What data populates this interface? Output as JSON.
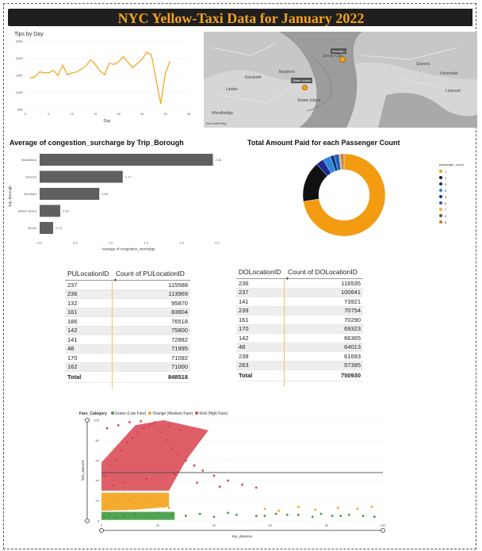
{
  "dashboard_title": "NYC Yellow-Taxi Data for January 2022",
  "colors": {
    "accent": "#f4a21a",
    "bar": "#5f5f5f",
    "green": "#3f9a3f",
    "orange": "#f4a21a",
    "red": "#d9434f"
  },
  "tips_panel": {
    "title": "Tips by Day"
  },
  "map_panel": {
    "labels": [
      "Jersey City",
      "Brooklyn",
      "Staten Island",
      "Bayonne",
      "Elizabeth",
      "Linden",
      "Woodbridge",
      "Queens",
      "Linwood",
      "Uniondale"
    ],
    "tag_brooklyn": "Brooklyn",
    "tag_staten": "Staten Island",
    "attribution": "Microsoft Bing"
  },
  "surcharge_panel": {
    "title": "Average of congestion_surcharge by Trip_Borough"
  },
  "passenger_panel": {
    "title": "Total Amount Paid for each Passenger Count"
  },
  "legend_passenger": {
    "title": "passenger_count",
    "items": [
      {
        "label": "1",
        "color": "#f39c12"
      },
      {
        "label": "2",
        "color": "#111111"
      },
      {
        "label": "3",
        "color": "#1a2b8f"
      },
      {
        "label": "5",
        "color": "#2e86de"
      },
      {
        "label": "4",
        "color": "#0b3a75"
      },
      {
        "label": "6",
        "color": "#1f5fbf"
      },
      {
        "label": "7",
        "color": "#f5b041"
      },
      {
        "label": "0",
        "color": "#7b4f2c"
      },
      {
        "label": "8",
        "color": "#c27c3a"
      }
    ]
  },
  "pu_table": {
    "headers": [
      "PULocationID",
      "Count of PULocationID"
    ],
    "rows": [
      [
        "237",
        "115588"
      ],
      [
        "236",
        "113969"
      ],
      [
        "132",
        "95870"
      ],
      [
        "161",
        "83804"
      ],
      [
        "186",
        "76518"
      ],
      [
        "142",
        "75800"
      ],
      [
        "141",
        "72882"
      ],
      [
        "48",
        "71995"
      ],
      [
        "170",
        "71092"
      ],
      [
        "162",
        "71000"
      ]
    ],
    "total_label": "Total",
    "total_value": "848518"
  },
  "do_table": {
    "headers": [
      "DOLocationID",
      "Count of DOLocationID"
    ],
    "rows": [
      [
        "236",
        "116535"
      ],
      [
        "237",
        "100641"
      ],
      [
        "141",
        "73921"
      ],
      [
        "239",
        "70754"
      ],
      [
        "161",
        "70290"
      ],
      [
        "170",
        "69323"
      ],
      [
        "142",
        "66365"
      ],
      [
        "48",
        "64013"
      ],
      [
        "238",
        "61693"
      ],
      [
        "263",
        "57395"
      ]
    ],
    "total_label": "Total",
    "total_value": "750930"
  },
  "scatter_panel": {
    "legend_title": "Fare_Category",
    "legend_items": [
      {
        "label": "Green (Low Fare)",
        "color": "#3f9a3f"
      },
      {
        "label": "Orange (Medium Fare)",
        "color": "#f4a21a"
      },
      {
        "label": "Red (High Fare)",
        "color": "#d9434f"
      }
    ]
  },
  "chart_data": [
    {
      "type": "line",
      "title": "Tips by Day",
      "xlabel": "Day",
      "ylabel": "",
      "xlim": [
        0,
        35
      ],
      "ylim": [
        50000,
        250000
      ],
      "xticks": [
        0,
        5,
        10,
        15,
        20,
        25,
        30,
        35
      ],
      "yticks": [
        {
          "v": 50000,
          "label": "50K"
        },
        {
          "v": 100000,
          "label": "100K"
        },
        {
          "v": 150000,
          "label": "150K"
        },
        {
          "v": 200000,
          "label": "200K"
        },
        {
          "v": 250000,
          "label": "250K"
        }
      ],
      "x": [
        1,
        2,
        3,
        4,
        5,
        6,
        7,
        8,
        9,
        10,
        11,
        12,
        13,
        14,
        15,
        16,
        17,
        18,
        19,
        20,
        21,
        22,
        23,
        24,
        25,
        26,
        27,
        28,
        29,
        30,
        31
      ],
      "values": [
        142000,
        145000,
        160000,
        158000,
        157000,
        165000,
        150000,
        180000,
        152000,
        157000,
        160000,
        168000,
        178000,
        195000,
        182000,
        162000,
        152000,
        185000,
        182000,
        190000,
        205000,
        188000,
        172000,
        185000,
        197000,
        218000,
        210000,
        140000,
        67000,
        155000,
        192000
      ]
    },
    {
      "type": "bar",
      "title": "Average of congestion_surcharge by Trip_Borough",
      "xlabel": "Average of congestion_surcharge",
      "ylabel": "Trip_Borough",
      "orientation": "horizontal",
      "xlim": [
        0,
        2.5
      ],
      "xticks": [
        {
          "v": 0,
          "label": "0.0"
        },
        {
          "v": 0.5,
          "label": "0.5"
        },
        {
          "v": 1,
          "label": "1.0"
        },
        {
          "v": 1.5,
          "label": "1.5"
        },
        {
          "v": 2,
          "label": "2.0"
        },
        {
          "v": 2.5,
          "label": "2.5"
        }
      ],
      "categories": [
        "Manhattan",
        "Queens",
        "Brooklyn",
        "Staten Island",
        "Bronx"
      ],
      "values": [
        2.44,
        1.17,
        0.84,
        0.29,
        0.19
      ],
      "data_labels": [
        "2.44",
        "1.17",
        "0.84",
        "0.29",
        "0.19"
      ]
    },
    {
      "type": "pie",
      "donut": true,
      "title": "Total Amount Paid for each Passenger Count",
      "categories": [
        "1",
        "2",
        "3",
        "5",
        "4",
        "6",
        "7",
        "0",
        "8"
      ],
      "values": [
        72.5,
        16.0,
        3.0,
        3.0,
        1.6,
        1.9,
        0.8,
        0.7,
        0.5
      ]
    },
    {
      "type": "scatter",
      "title": "",
      "xlabel": "trip_distance",
      "ylabel": "fare_amount",
      "xlim": [
        0,
        100
      ],
      "ylim": [
        0,
        100
      ],
      "xticks": [
        0,
        20,
        40,
        60,
        80,
        100
      ],
      "yticks": [
        0,
        20,
        40,
        60,
        80,
        100
      ],
      "reference_line_y": 48,
      "series": [
        {
          "name": "Green (Low Fare)",
          "x": [
            1,
            3,
            5,
            8,
            12,
            16,
            20,
            25,
            30,
            35,
            40,
            48,
            55,
            62,
            70,
            75,
            82,
            88,
            93,
            97,
            45,
            58,
            66,
            78,
            85
          ],
          "y": [
            4,
            6,
            3,
            5,
            7,
            5,
            8,
            6,
            5,
            7,
            4,
            6,
            5,
            7,
            6,
            4,
            5,
            6,
            5,
            4,
            8,
            5,
            6,
            7,
            5
          ]
        },
        {
          "name": "Orange (Medium Fare)",
          "x": [
            1,
            2,
            4,
            6,
            8,
            10,
            12,
            14,
            16,
            18,
            20,
            22,
            24,
            58,
            63,
            70,
            76,
            84,
            91,
            96
          ],
          "y": [
            16,
            22,
            25,
            19,
            27,
            21,
            24,
            18,
            23,
            20,
            17,
            14,
            13,
            12,
            10,
            14,
            11,
            13,
            12,
            14
          ]
        },
        {
          "name": "Red (High Fare)",
          "x": [
            1,
            3,
            5,
            7,
            9,
            11,
            13,
            15,
            17,
            19,
            21,
            23,
            25,
            27,
            30,
            33,
            36,
            40,
            45,
            50,
            55,
            2,
            6,
            10,
            14,
            18,
            24,
            28,
            4,
            8,
            16,
            26,
            34,
            42
          ],
          "y": [
            45,
            55,
            60,
            70,
            78,
            82,
            88,
            92,
            95,
            98,
            88,
            80,
            72,
            66,
            60,
            55,
            50,
            45,
            40,
            36,
            33,
            92,
            95,
            98,
            99,
            96,
            94,
            90,
            35,
            38,
            42,
            46,
            38,
            34
          ]
        }
      ]
    }
  ]
}
